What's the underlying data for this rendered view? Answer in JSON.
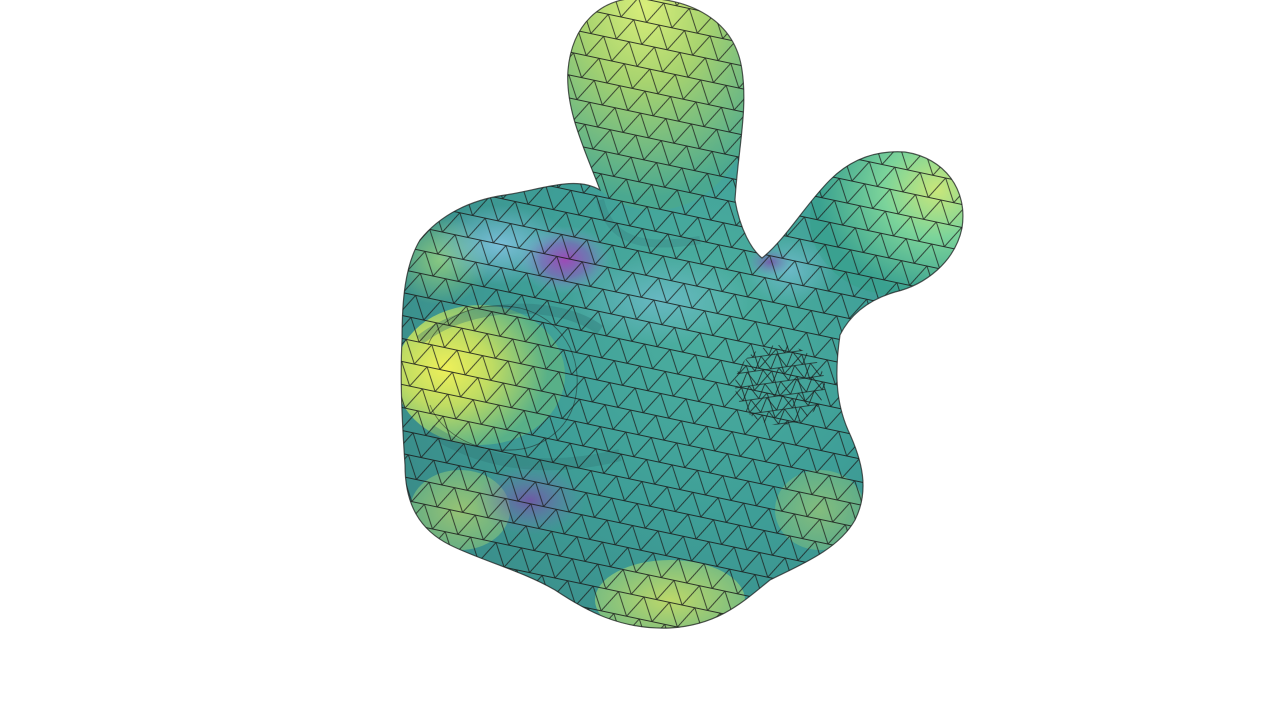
{
  "scene": {
    "background_color": "#ffffff",
    "object": "triangle-mesh-blob",
    "surface_colormap": [
      "#440154",
      "#6b3fa0",
      "#7fb5d6",
      "#3ea89a",
      "#4aa88e",
      "#a7d36a",
      "#e8ee5a"
    ],
    "wireframe_color": "#1a1a1a",
    "lobes": [
      "top-lobe",
      "right-lobe",
      "left-lobe",
      "bottom-lobe"
    ]
  }
}
